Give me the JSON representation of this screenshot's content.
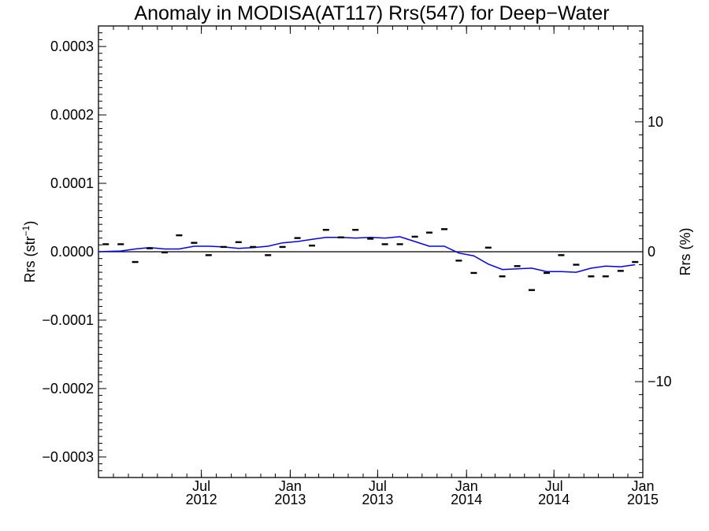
{
  "chart_data": {
    "type": "scatter",
    "title": "Anomaly in MODISA(AT117) Rrs(547) for Deep−Water",
    "ylabel": "Rrs (str",
    "ylabel_sup": "−1",
    "ylabel_close": ")",
    "y2label": "Rrs (%)",
    "xlim": [
      "2011-12-01",
      "2015-01-01"
    ],
    "ylim": [
      -0.00033,
      0.00033
    ],
    "y2lim": [
      -17.38,
      17.38
    ],
    "zero_line": true,
    "grid": false,
    "x_ticks": [
      {
        "date": "2012-07-01",
        "line1": "Jul",
        "line2": "2012"
      },
      {
        "date": "2013-01-01",
        "line1": "Jan",
        "line2": "2013"
      },
      {
        "date": "2013-07-01",
        "line1": "Jul",
        "line2": "2013"
      },
      {
        "date": "2014-01-01",
        "line1": "Jan",
        "line2": "2014"
      },
      {
        "date": "2014-07-01",
        "line1": "Jul",
        "line2": "2014"
      },
      {
        "date": "2015-01-01",
        "line1": "Jan",
        "line2": "2015"
      }
    ],
    "y_ticks": [
      {
        "value": 0.0003,
        "label": "0.0003"
      },
      {
        "value": 0.0002,
        "label": "0.0002"
      },
      {
        "value": 0.0001,
        "label": "0.0001"
      },
      {
        "value": 0.0,
        "label": "0.0000"
      },
      {
        "value": -0.0001,
        "label": "−0.0001"
      },
      {
        "value": -0.0002,
        "label": "−0.0002"
      },
      {
        "value": -0.0003,
        "label": "−0.0003"
      }
    ],
    "y2_ticks": [
      {
        "value": 10,
        "label": "10"
      },
      {
        "value": 0,
        "label": "0"
      },
      {
        "value": -10,
        "label": "−10"
      }
    ],
    "points": [
      {
        "x": "2011-12-16",
        "y": 1.1e-05
      },
      {
        "x": "2012-01-16",
        "y": 1.1e-05
      },
      {
        "x": "2012-02-15",
        "y": -1.5e-05
      },
      {
        "x": "2012-03-16",
        "y": 5e-06
      },
      {
        "x": "2012-04-16",
        "y": -1e-06
      },
      {
        "x": "2012-05-16",
        "y": 2.4e-05
      },
      {
        "x": "2012-06-16",
        "y": 1.3e-05
      },
      {
        "x": "2012-07-16",
        "y": -5e-06
      },
      {
        "x": "2012-08-16",
        "y": 7e-06
      },
      {
        "x": "2012-09-16",
        "y": 1.4e-05
      },
      {
        "x": "2012-10-16",
        "y": 7e-06
      },
      {
        "x": "2012-11-16",
        "y": -5e-06
      },
      {
        "x": "2012-12-16",
        "y": 7e-06
      },
      {
        "x": "2013-01-16",
        "y": 2e-05
      },
      {
        "x": "2013-02-15",
        "y": 9e-06
      },
      {
        "x": "2013-03-16",
        "y": 3.2e-05
      },
      {
        "x": "2013-04-16",
        "y": 2.1e-05
      },
      {
        "x": "2013-05-16",
        "y": 3.2e-05
      },
      {
        "x": "2013-06-16",
        "y": 1.9e-05
      },
      {
        "x": "2013-07-16",
        "y": 1.1e-05
      },
      {
        "x": "2013-08-16",
        "y": 1.1e-05
      },
      {
        "x": "2013-09-16",
        "y": 2.2e-05
      },
      {
        "x": "2013-10-16",
        "y": 2.8e-05
      },
      {
        "x": "2013-11-16",
        "y": 3.3e-05
      },
      {
        "x": "2013-12-16",
        "y": -1.3e-05
      },
      {
        "x": "2014-01-16",
        "y": -3.1e-05
      },
      {
        "x": "2014-02-15",
        "y": 6e-06
      },
      {
        "x": "2014-03-16",
        "y": -3.6e-05
      },
      {
        "x": "2014-04-16",
        "y": -2.1e-05
      },
      {
        "x": "2014-05-16",
        "y": -5.6e-05
      },
      {
        "x": "2014-06-16",
        "y": -3.1e-05
      },
      {
        "x": "2014-07-16",
        "y": -5e-06
      },
      {
        "x": "2014-08-16",
        "y": -1.9e-05
      },
      {
        "x": "2014-09-16",
        "y": -3.6e-05
      },
      {
        "x": "2014-10-16",
        "y": -3.6e-05
      },
      {
        "x": "2014-11-16",
        "y": -2.8e-05
      },
      {
        "x": "2014-12-16",
        "y": -1.5e-05
      }
    ],
    "trend_line": [
      {
        "x": "2011-12-01",
        "y": 0.0
      },
      {
        "x": "2012-01-16",
        "y": 1e-06
      },
      {
        "x": "2012-02-15",
        "y": 4e-06
      },
      {
        "x": "2012-03-16",
        "y": 6e-06
      },
      {
        "x": "2012-04-16",
        "y": 4e-06
      },
      {
        "x": "2012-05-16",
        "y": 4e-06
      },
      {
        "x": "2012-06-16",
        "y": 8e-06
      },
      {
        "x": "2012-07-16",
        "y": 8e-06
      },
      {
        "x": "2012-08-16",
        "y": 7e-06
      },
      {
        "x": "2012-09-16",
        "y": 5e-06
      },
      {
        "x": "2012-10-16",
        "y": 6e-06
      },
      {
        "x": "2012-11-16",
        "y": 8e-06
      },
      {
        "x": "2012-12-16",
        "y": 1.3e-05
      },
      {
        "x": "2013-01-16",
        "y": 1.5e-05
      },
      {
        "x": "2013-02-15",
        "y": 1.8e-05
      },
      {
        "x": "2013-03-16",
        "y": 2.1e-05
      },
      {
        "x": "2013-04-16",
        "y": 2.1e-05
      },
      {
        "x": "2013-05-16",
        "y": 2e-05
      },
      {
        "x": "2013-06-16",
        "y": 2.1e-05
      },
      {
        "x": "2013-07-16",
        "y": 2e-05
      },
      {
        "x": "2013-08-16",
        "y": 2.2e-05
      },
      {
        "x": "2013-09-16",
        "y": 1.5e-05
      },
      {
        "x": "2013-10-16",
        "y": 8e-06
      },
      {
        "x": "2013-11-16",
        "y": 8e-06
      },
      {
        "x": "2013-12-16",
        "y": -2e-06
      },
      {
        "x": "2014-01-16",
        "y": -6e-06
      },
      {
        "x": "2014-02-15",
        "y": -1.8e-05
      },
      {
        "x": "2014-03-16",
        "y": -2.6e-05
      },
      {
        "x": "2014-04-16",
        "y": -2.5e-05
      },
      {
        "x": "2014-05-16",
        "y": -2.4e-05
      },
      {
        "x": "2014-06-16",
        "y": -2.9e-05
      },
      {
        "x": "2014-07-16",
        "y": -2.9e-05
      },
      {
        "x": "2014-08-16",
        "y": -3e-05
      },
      {
        "x": "2014-09-16",
        "y": -2.4e-05
      },
      {
        "x": "2014-10-16",
        "y": -2.1e-05
      },
      {
        "x": "2014-11-16",
        "y": -2.2e-05
      },
      {
        "x": "2014-12-16",
        "y": -1.9e-05
      }
    ],
    "colors": {
      "points": "#000000",
      "trend": "#0000ff",
      "axes": "#000000"
    }
  }
}
